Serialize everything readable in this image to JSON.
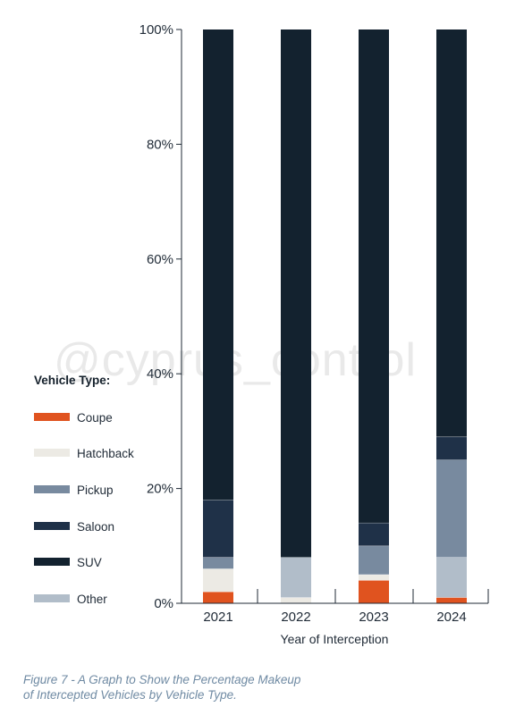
{
  "watermark": "@cyprus_control",
  "chart_data": {
    "type": "bar",
    "stacked": true,
    "categories": [
      "2021",
      "2022",
      "2023",
      "2024"
    ],
    "xlabel": "Year of Interception",
    "ylabel": "",
    "ylim": [
      0,
      100
    ],
    "yticks": [
      "0%",
      "20%",
      "40%",
      "60%",
      "80%",
      "100%"
    ],
    "yticks_values": [
      0,
      20,
      40,
      60,
      80,
      100
    ],
    "legend_title": "Vehicle Type:",
    "legend_position": "left",
    "grid": false,
    "series": [
      {
        "name": "Coupe",
        "color": "#e0531f",
        "values": [
          2,
          0,
          4,
          1
        ]
      },
      {
        "name": "Hatchback",
        "color": "#eceae4",
        "values": [
          4,
          1,
          1,
          0
        ]
      },
      {
        "name": "Other",
        "color": "#b1bdc9",
        "values": [
          0,
          7,
          0,
          7
        ]
      },
      {
        "name": "Pickup",
        "color": "#788a9f",
        "values": [
          2,
          0,
          5,
          17
        ]
      },
      {
        "name": "Saloon",
        "color": "#1f3148",
        "values": [
          10,
          0,
          4,
          4
        ]
      },
      {
        "name": "SUV",
        "color": "#13222f",
        "values": [
          82,
          92,
          86,
          71
        ]
      }
    ],
    "legend_order": [
      "Coupe",
      "Hatchback",
      "Pickup",
      "Saloon",
      "SUV",
      "Other"
    ]
  },
  "caption": {
    "line1": "Figure 7 - A  Graph to Show the Percentage Makeup",
    "line2": "of Intercepted Vehicles by Vehicle Type."
  }
}
